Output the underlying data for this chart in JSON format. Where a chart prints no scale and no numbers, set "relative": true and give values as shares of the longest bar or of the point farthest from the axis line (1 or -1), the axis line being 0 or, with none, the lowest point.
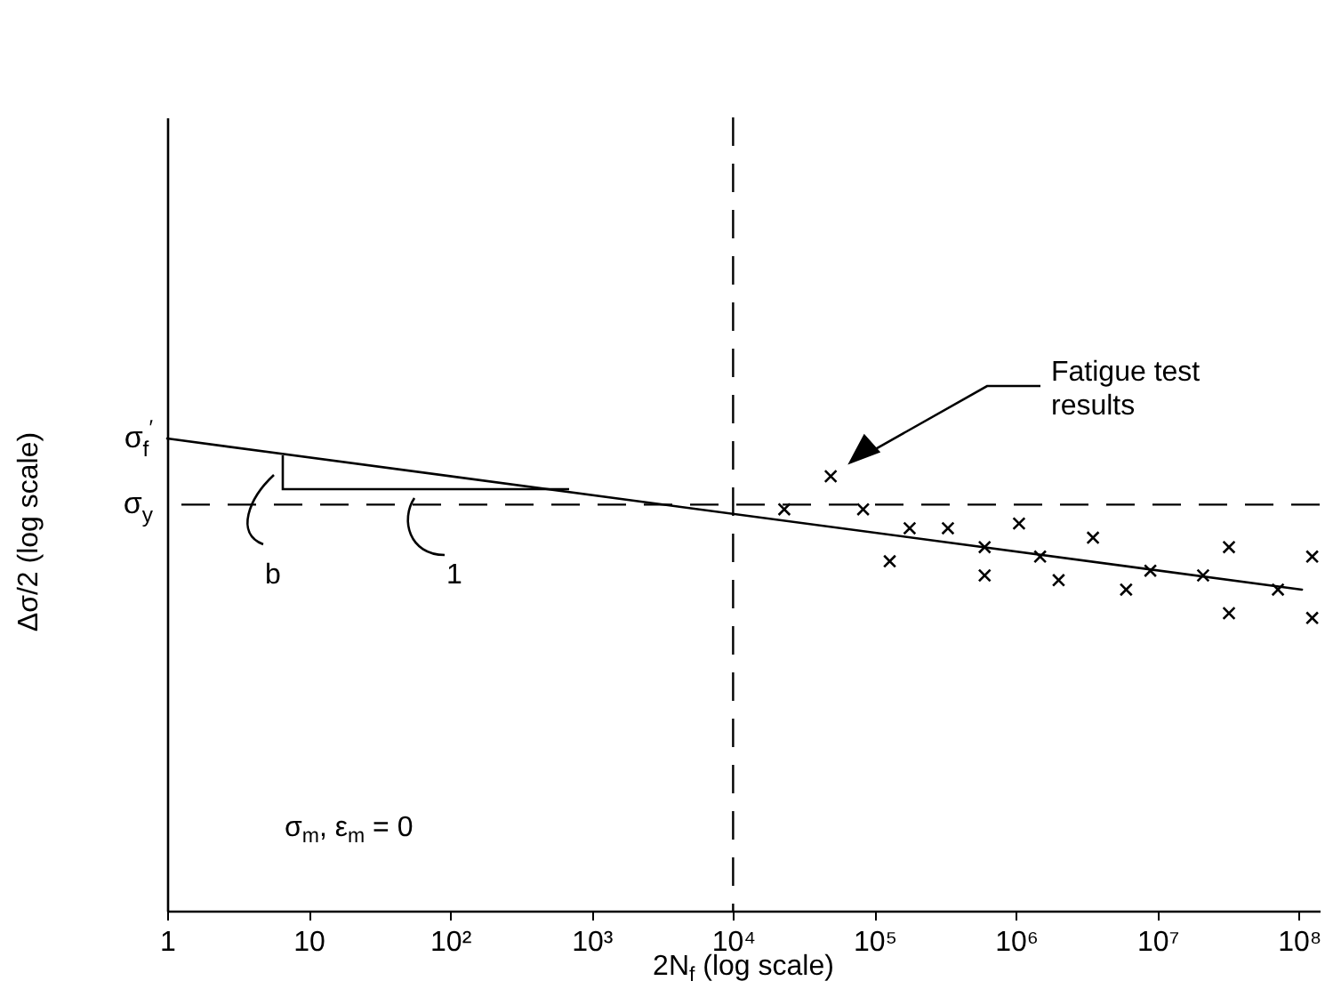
{
  "chart_data": {
    "type": "scatter",
    "relative": true,
    "xlabel": "2N$_{f}$ (log scale)",
    "ylabel": "Δσ/2 (log scale)",
    "log": "x",
    "xlim": [
      1,
      140000000
    ],
    "xticks": [
      1,
      10,
      {
        "value": 100,
        "label": "10²"
      },
      {
        "value": 1000,
        "label": "10³"
      },
      {
        "value": 10000,
        "label": "10⁴"
      },
      {
        "value": 100000,
        "label": "10⁵"
      },
      {
        "value": 1000000,
        "label": "10⁶"
      },
      {
        "value": 10000000,
        "label": "10⁷"
      },
      {
        "value": 100000000,
        "label": "10⁸"
      }
    ],
    "series": [
      {
        "type": "line",
        "color": "#000000",
        "line_style": "solid",
        "x": [
          1,
          105000000
        ],
        "values": [
          1.0,
          0.68
        ]
      },
      {
        "color": "#000000",
        "marker": "cross",
        "x": [
          23000,
          49000,
          83000,
          128000,
          177000,
          330000,
          600000,
          600000,
          1050000,
          1480000,
          2000000,
          3500000,
          6000000,
          8900000,
          21000000,
          32000000,
          32000000,
          71000000,
          124000000,
          124000000
        ],
        "values": [
          0.85,
          0.92,
          0.85,
          0.74,
          0.81,
          0.81,
          0.77,
          0.71,
          0.82,
          0.75,
          0.7,
          0.79,
          0.68,
          0.72,
          0.71,
          0.77,
          0.63,
          0.68,
          0.75,
          0.62
        ]
      }
    ],
    "ref_lines": [
      {
        "axis": "y",
        "value": 0.86,
        "label": "σ$_{y}$",
        "line_style": "dashed"
      },
      {
        "axis": "x",
        "value": 10000,
        "line_style": "dashed"
      }
    ],
    "annotations": [
      {
        "text": "σ$_{f}$$^{′}$",
        "x": 1,
        "y": 1.0
      },
      "b",
      "1",
      "Fatigue test results",
      "σ$_{m}$, ε$_{m}$ = 0"
    ],
    "grid": false
  }
}
